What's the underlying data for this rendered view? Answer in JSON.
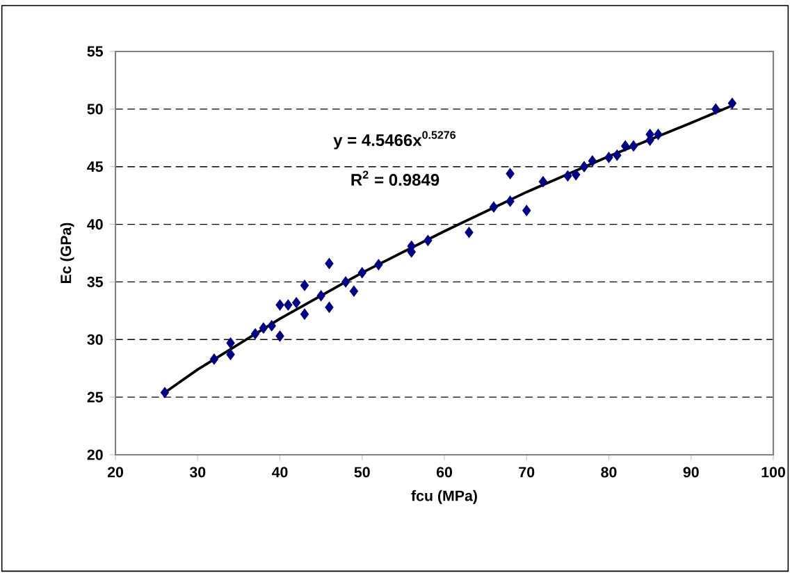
{
  "chart_data": {
    "type": "scatter",
    "xlabel": "fcu (MPa)",
    "ylabel": "Ec (GPa)",
    "annotations": [
      "y = 4.5466x$^{0.5276}$",
      "R$^{2}$ = 0.9849"
    ],
    "xlim": [
      20,
      100
    ],
    "xticks": [
      20,
      30,
      40,
      50,
      60,
      70,
      80,
      90,
      100
    ],
    "ylim": [
      20,
      55
    ],
    "yticks": [
      20,
      25,
      30,
      35,
      40,
      45,
      50,
      55
    ],
    "grid": "y",
    "series": [
      {
        "color": "#000080",
        "marker": "diamond",
        "x": [
          26,
          32,
          34,
          34,
          37,
          38,
          39,
          40,
          40,
          41,
          42,
          43,
          43,
          45,
          46,
          46,
          48,
          49,
          50,
          52,
          56,
          56,
          58,
          63,
          66,
          68,
          68,
          70,
          72,
          75,
          76,
          77,
          78,
          80,
          81,
          82,
          83,
          85,
          85,
          86,
          93,
          95
        ],
        "values": [
          25.4,
          28.3,
          29.7,
          28.7,
          30.5,
          31,
          31.2,
          33,
          30.3,
          33,
          33.2,
          34.7,
          32.2,
          33.8,
          36.6,
          32.8,
          35,
          34.2,
          35.8,
          36.5,
          37.6,
          38.1,
          38.6,
          39.3,
          41.5,
          44.4,
          42,
          41.2,
          43.7,
          44.2,
          44.3,
          45,
          45.5,
          45.8,
          46,
          46.8,
          46.8,
          47.3,
          47.8,
          47.8,
          50,
          50.5
        ]
      },
      {
        "type": "line",
        "color": "#000000",
        "marker": "none",
        "line_style": "solid",
        "x": [
          26,
          30,
          40,
          50,
          60,
          70,
          80,
          90,
          95
        ],
        "values": [
          25.4,
          27.4,
          31.8,
          35.8,
          39.4,
          42.8,
          45.9,
          48.8,
          50.3
        ]
      }
    ]
  }
}
